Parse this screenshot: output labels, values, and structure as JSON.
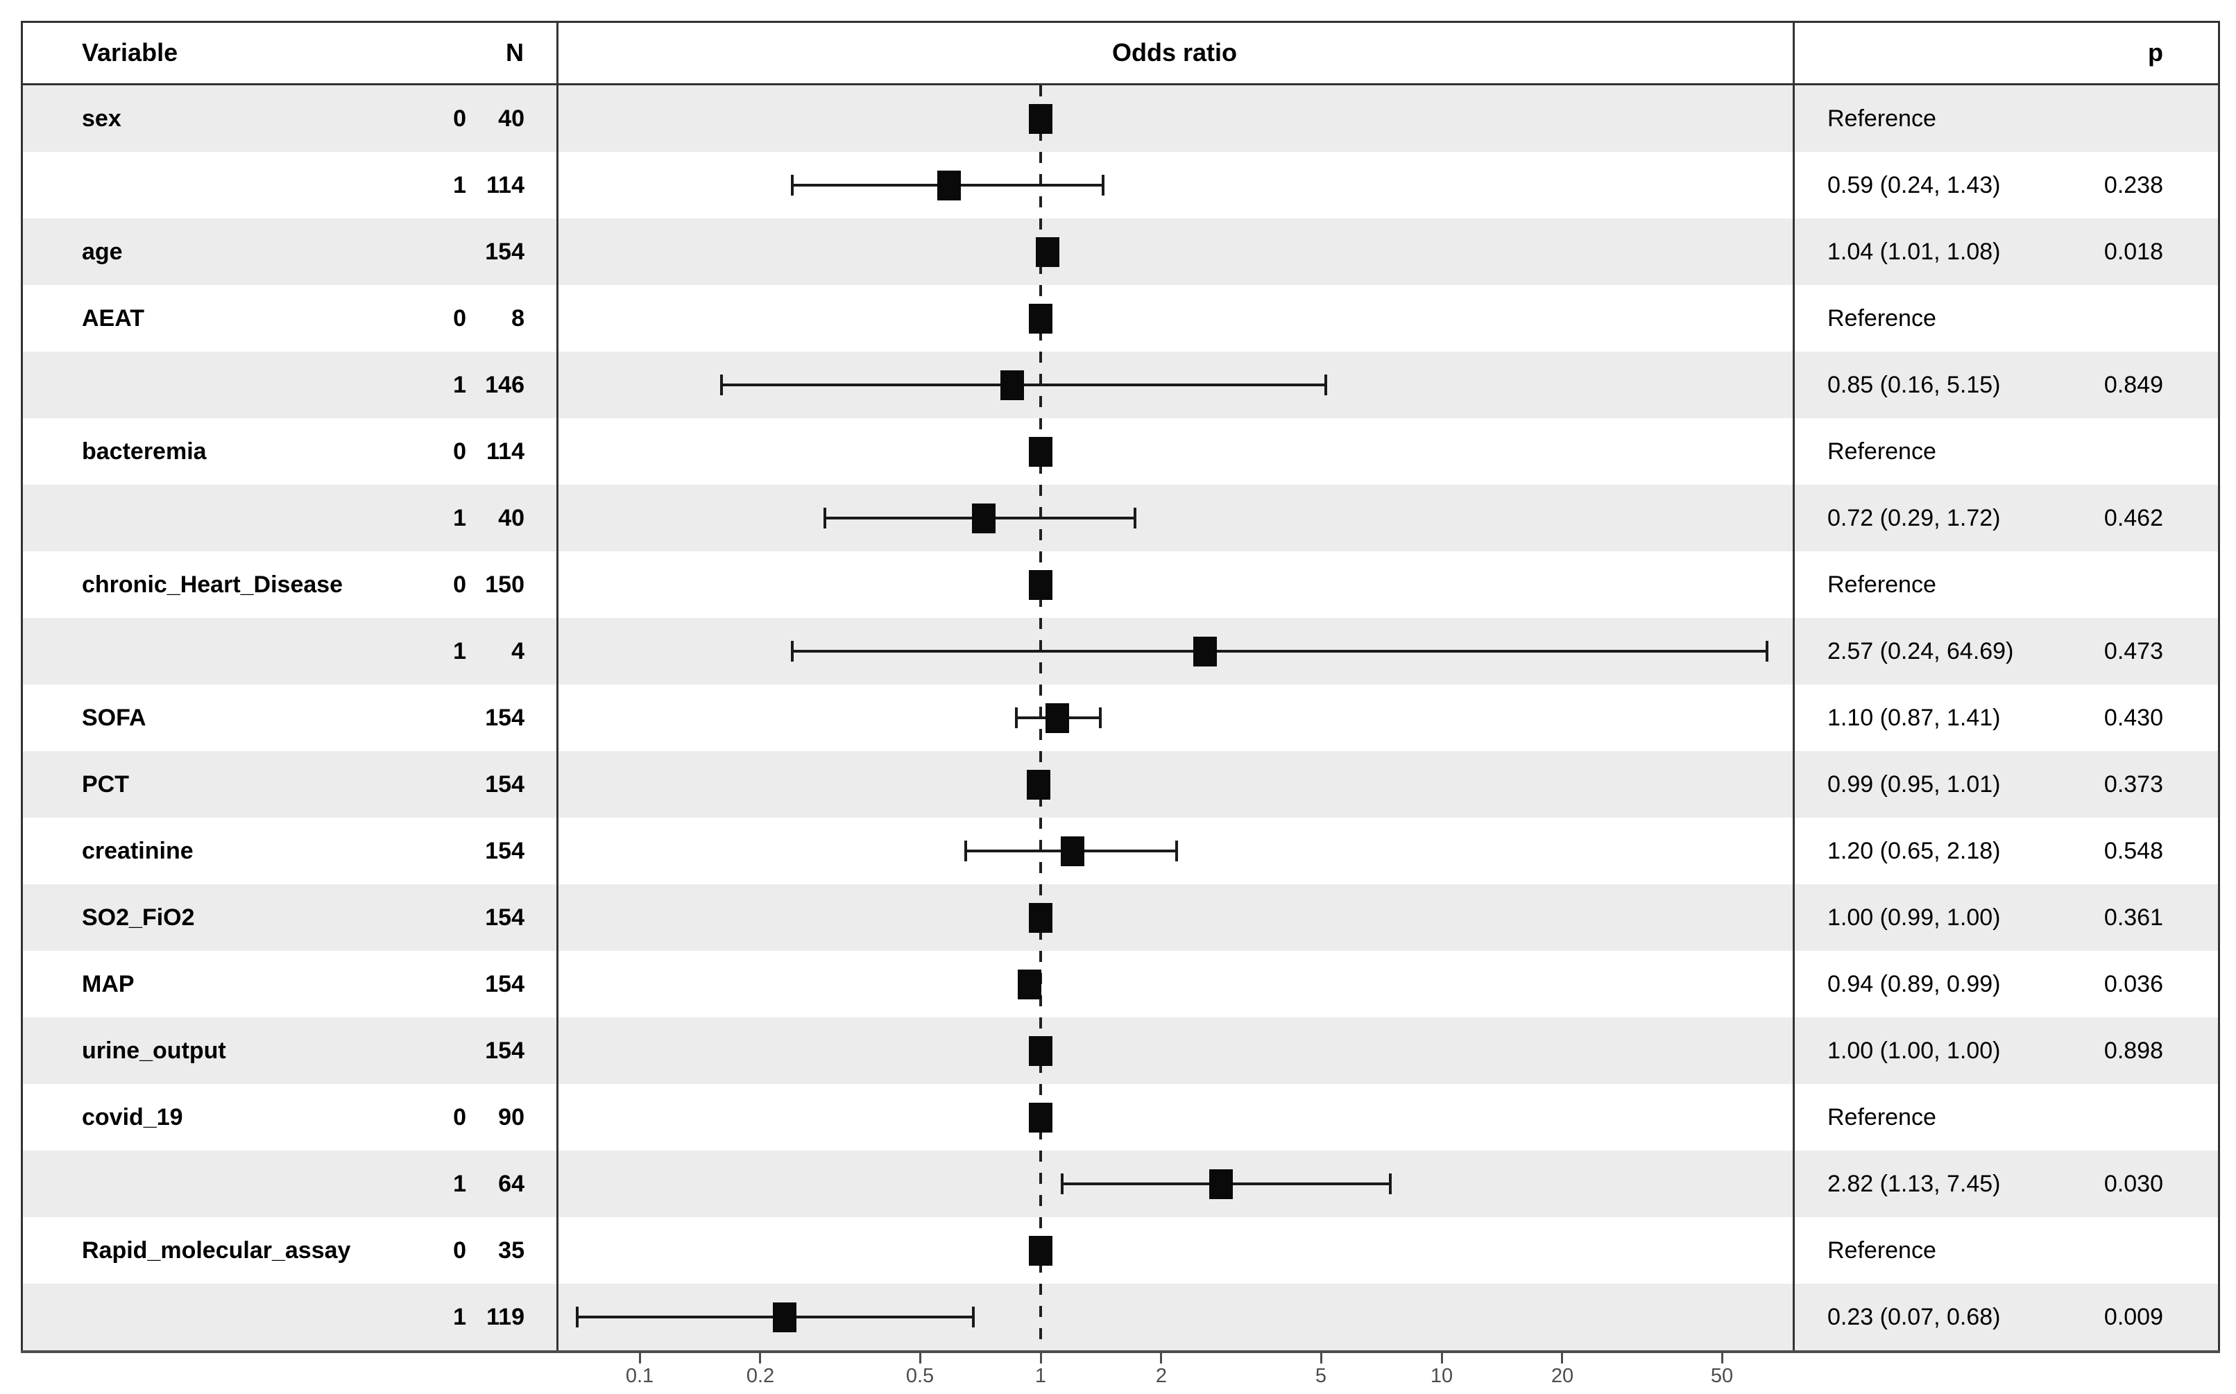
{
  "chart_data": {
    "type": "forest",
    "title": "Odds ratio",
    "headers": {
      "variable": "Variable",
      "n": "N",
      "plot": "Odds ratio",
      "p": "p"
    },
    "x_axis": {
      "scale": "log10",
      "ticks": [
        0.1,
        0.2,
        0.5,
        1,
        2,
        5,
        10,
        20,
        50
      ],
      "tick_labels": [
        "0.1",
        "0.2",
        "0.5",
        "1",
        "2",
        "5",
        "10",
        "20",
        "50"
      ],
      "reference_line": 1,
      "range": [
        0.062,
        75
      ],
      "grid": false,
      "legend": "none"
    },
    "rows": [
      {
        "variable": "sex",
        "level": "0",
        "n": "40",
        "or": 1.0,
        "ci_low": null,
        "ci_high": null,
        "reference": true,
        "estimate_label": "Reference",
        "p": "",
        "shaded": true
      },
      {
        "variable": "",
        "level": "1",
        "n": "114",
        "or": 0.59,
        "ci_low": 0.24,
        "ci_high": 1.43,
        "reference": false,
        "estimate_label": "0.59 (0.24, 1.43)",
        "p": "0.238",
        "shaded": false
      },
      {
        "variable": "age",
        "level": "",
        "n": "154",
        "or": 1.04,
        "ci_low": 1.01,
        "ci_high": 1.08,
        "reference": false,
        "estimate_label": "1.04 (1.01, 1.08)",
        "p": "0.018",
        "shaded": true
      },
      {
        "variable": "AEAT",
        "level": "0",
        "n": "8",
        "or": 1.0,
        "ci_low": null,
        "ci_high": null,
        "reference": true,
        "estimate_label": "Reference",
        "p": "",
        "shaded": false
      },
      {
        "variable": "",
        "level": "1",
        "n": "146",
        "or": 0.85,
        "ci_low": 0.16,
        "ci_high": 5.15,
        "reference": false,
        "estimate_label": "0.85 (0.16, 5.15)",
        "p": "0.849",
        "shaded": true
      },
      {
        "variable": "bacteremia",
        "level": "0",
        "n": "114",
        "or": 1.0,
        "ci_low": null,
        "ci_high": null,
        "reference": true,
        "estimate_label": "Reference",
        "p": "",
        "shaded": false
      },
      {
        "variable": "",
        "level": "1",
        "n": "40",
        "or": 0.72,
        "ci_low": 0.29,
        "ci_high": 1.72,
        "reference": false,
        "estimate_label": "0.72 (0.29, 1.72)",
        "p": "0.462",
        "shaded": true
      },
      {
        "variable": "chronic_Heart_Disease",
        "level": "0",
        "n": "150",
        "or": 1.0,
        "ci_low": null,
        "ci_high": null,
        "reference": true,
        "estimate_label": "Reference",
        "p": "",
        "shaded": false
      },
      {
        "variable": "",
        "level": "1",
        "n": "4",
        "or": 2.57,
        "ci_low": 0.24,
        "ci_high": 64.69,
        "reference": false,
        "estimate_label": "2.57 (0.24, 64.69)",
        "p": "0.473",
        "shaded": true
      },
      {
        "variable": "SOFA",
        "level": "",
        "n": "154",
        "or": 1.1,
        "ci_low": 0.87,
        "ci_high": 1.41,
        "reference": false,
        "estimate_label": "1.10 (0.87, 1.41)",
        "p": "0.430",
        "shaded": false
      },
      {
        "variable": "PCT",
        "level": "",
        "n": "154",
        "or": 0.99,
        "ci_low": 0.95,
        "ci_high": 1.01,
        "reference": false,
        "estimate_label": "0.99 (0.95, 1.01)",
        "p": "0.373",
        "shaded": true
      },
      {
        "variable": "creatinine",
        "level": "",
        "n": "154",
        "or": 1.2,
        "ci_low": 0.65,
        "ci_high": 2.18,
        "reference": false,
        "estimate_label": "1.20 (0.65, 2.18)",
        "p": "0.548",
        "shaded": false
      },
      {
        "variable": "SO2_FiO2",
        "level": "",
        "n": "154",
        "or": 1.0,
        "ci_low": 0.99,
        "ci_high": 1.0,
        "reference": false,
        "estimate_label": "1.00 (0.99, 1.00)",
        "p": "0.361",
        "shaded": true
      },
      {
        "variable": "MAP",
        "level": "",
        "n": "154",
        "or": 0.94,
        "ci_low": 0.89,
        "ci_high": 0.99,
        "reference": false,
        "estimate_label": "0.94 (0.89, 0.99)",
        "p": "0.036",
        "shaded": false
      },
      {
        "variable": "urine_output",
        "level": "",
        "n": "154",
        "or": 1.0,
        "ci_low": 1.0,
        "ci_high": 1.0,
        "reference": false,
        "estimate_label": "1.00 (1.00, 1.00)",
        "p": "0.898",
        "shaded": true
      },
      {
        "variable": "covid_19",
        "level": "0",
        "n": "90",
        "or": 1.0,
        "ci_low": null,
        "ci_high": null,
        "reference": true,
        "estimate_label": "Reference",
        "p": "",
        "shaded": false
      },
      {
        "variable": "",
        "level": "1",
        "n": "64",
        "or": 2.82,
        "ci_low": 1.13,
        "ci_high": 7.45,
        "reference": false,
        "estimate_label": "2.82 (1.13, 7.45)",
        "p": "0.030",
        "shaded": true
      },
      {
        "variable": "Rapid_molecular_assay",
        "level": "0",
        "n": "35",
        "or": 1.0,
        "ci_low": null,
        "ci_high": null,
        "reference": true,
        "estimate_label": "Reference",
        "p": "",
        "shaded": false
      },
      {
        "variable": "",
        "level": "1",
        "n": "119",
        "or": 0.23,
        "ci_low": 0.07,
        "ci_high": 0.68,
        "reference": false,
        "estimate_label": "0.23 (0.07, 0.68)",
        "p": "0.009",
        "shaded": true
      }
    ]
  },
  "colors": {
    "background": "#ffffff",
    "stripe": "#ececec",
    "border": "#333333",
    "axis": "#4d4d4d",
    "marker": "#0a0a0a",
    "tick_text": "#4d4d4d",
    "text": "#000000"
  }
}
